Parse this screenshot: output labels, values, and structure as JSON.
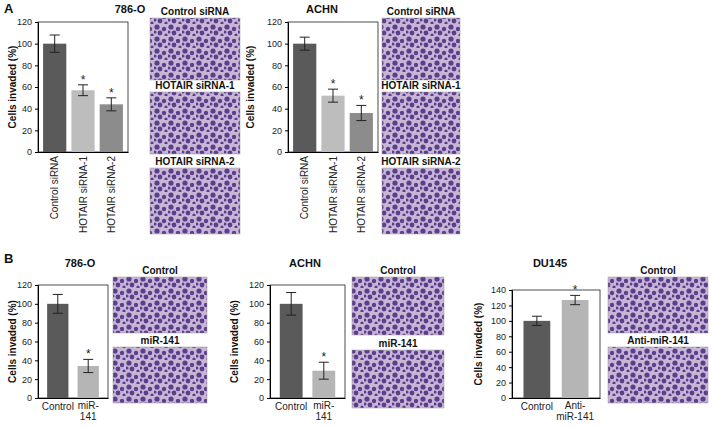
{
  "chart_data": [
    {
      "type": "bar",
      "panel": "A",
      "title": "786-O",
      "y_label": "Cells invaded (%)",
      "categories": [
        "Control siRNA",
        "HOTAIR siRNA-1",
        "HOTAIR siRNA-2"
      ],
      "values": [
        100,
        57,
        44
      ],
      "errors": [
        8,
        5,
        6
      ],
      "colors": [
        "#5a5a5a",
        "#bdbdbd",
        "#8c8c8c"
      ],
      "significance": [
        null,
        "*",
        "*"
      ],
      "ylim": [
        0,
        120
      ],
      "yticks": [
        0,
        20,
        40,
        60,
        80,
        100,
        120
      ],
      "image_labels": [
        "Control siRNA",
        "HOTAIR siRNA-1",
        "HOTAIR siRNA-2"
      ]
    },
    {
      "type": "bar",
      "title": "ACHN",
      "y_label": "Cells invaded (%)",
      "categories": [
        "Control siRNA",
        "HOTAIR siRNA-1",
        "HOTAIR siRNA-2"
      ],
      "values": [
        100,
        52,
        36
      ],
      "errors": [
        6,
        6,
        7
      ],
      "colors": [
        "#5a5a5a",
        "#bdbdbd",
        "#8c8c8c"
      ],
      "significance": [
        null,
        "*",
        "*"
      ],
      "ylim": [
        0,
        120
      ],
      "yticks": [
        0,
        20,
        40,
        60,
        80,
        100,
        120
      ],
      "image_labels": [
        "Control siRNA",
        "HOTAIR siRNA-1",
        "HOTAIR siRNA-2"
      ]
    },
    {
      "type": "bar",
      "panel": "B",
      "title": "786-O",
      "y_label": "Cells invaded (%)",
      "categories": [
        "Control",
        "miR-141"
      ],
      "values": [
        100,
        34
      ],
      "errors": [
        10,
        7
      ],
      "colors": [
        "#5a5a5a",
        "#b5b5b5"
      ],
      "significance": [
        null,
        "*"
      ],
      "ylim": [
        0,
        120
      ],
      "yticks": [
        0,
        20,
        40,
        60,
        80,
        100,
        120
      ],
      "image_labels": [
        "Control",
        "miR-141"
      ]
    },
    {
      "type": "bar",
      "title": "ACHN",
      "y_label": "Cells invaded (%)",
      "categories": [
        "Control",
        "miR-141"
      ],
      "values": [
        100,
        29
      ],
      "errors": [
        12,
        9
      ],
      "colors": [
        "#5a5a5a",
        "#b5b5b5"
      ],
      "significance": [
        null,
        "*"
      ],
      "ylim": [
        0,
        120
      ],
      "yticks": [
        0,
        20,
        40,
        60,
        80,
        100,
        120
      ],
      "image_labels": [
        "Control",
        "miR-141"
      ]
    },
    {
      "type": "bar",
      "title": "DU145",
      "y_label": "Cells invaded (%)",
      "categories": [
        "Control",
        "Anti-miR-141"
      ],
      "values": [
        100,
        127
      ],
      "errors": [
        6,
        6
      ],
      "colors": [
        "#5a5a5a",
        "#b5b5b5"
      ],
      "significance": [
        null,
        "*"
      ],
      "ylim": [
        0,
        140
      ],
      "yticks": [
        0,
        20,
        40,
        60,
        80,
        100,
        120,
        140
      ],
      "image_labels": [
        "Control",
        "Anti-miR-141"
      ]
    }
  ]
}
